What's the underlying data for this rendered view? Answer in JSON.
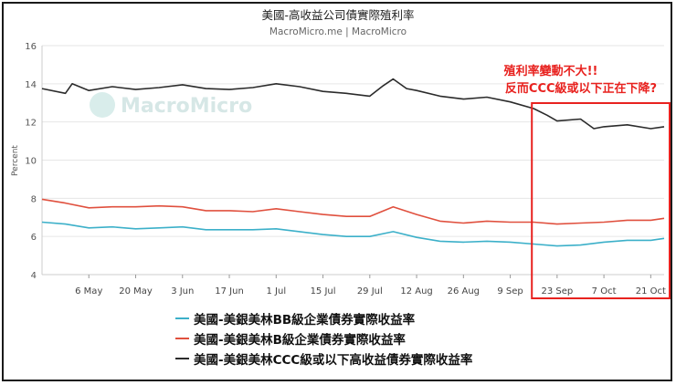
{
  "chart_data": {
    "type": "line",
    "title": "美國-高收益公司債實際殖利率",
    "subtitle": "MacroMicro.me | MacroMicro",
    "ylabel": "Percent",
    "ylim": [
      4,
      16
    ],
    "yticks": [
      4,
      6,
      8,
      10,
      12,
      14,
      16
    ],
    "x_range": [
      "2024-04-22",
      "2024-10-25"
    ],
    "xticks": [
      {
        "date": "2024-05-06",
        "label": "6 May"
      },
      {
        "date": "2024-05-20",
        "label": "20 May"
      },
      {
        "date": "2024-06-03",
        "label": "3 Jun"
      },
      {
        "date": "2024-06-17",
        "label": "17 Jun"
      },
      {
        "date": "2024-07-01",
        "label": "1 Jul"
      },
      {
        "date": "2024-07-15",
        "label": "15 Jul"
      },
      {
        "date": "2024-07-29",
        "label": "29 Jul"
      },
      {
        "date": "2024-08-12",
        "label": "12 Aug"
      },
      {
        "date": "2024-08-26",
        "label": "26 Aug"
      },
      {
        "date": "2024-09-09",
        "label": "9 Sep"
      },
      {
        "date": "2024-09-23",
        "label": "23 Sep"
      },
      {
        "date": "2024-10-07",
        "label": "7 Oct"
      },
      {
        "date": "2024-10-21",
        "label": "21 Oct"
      }
    ],
    "grid": true,
    "legend_position": "bottom",
    "series": [
      {
        "name": "美國-美銀美林BB級企業債券實際收益率",
        "color": "#3cb0c9",
        "points": [
          [
            "2024-04-22",
            6.75
          ],
          [
            "2024-04-29",
            6.65
          ],
          [
            "2024-05-06",
            6.45
          ],
          [
            "2024-05-13",
            6.5
          ],
          [
            "2024-05-20",
            6.4
          ],
          [
            "2024-05-27",
            6.45
          ],
          [
            "2024-06-03",
            6.5
          ],
          [
            "2024-06-10",
            6.35
          ],
          [
            "2024-06-17",
            6.35
          ],
          [
            "2024-06-24",
            6.35
          ],
          [
            "2024-07-01",
            6.4
          ],
          [
            "2024-07-08",
            6.25
          ],
          [
            "2024-07-15",
            6.1
          ],
          [
            "2024-07-22",
            6.0
          ],
          [
            "2024-07-29",
            6.0
          ],
          [
            "2024-08-05",
            6.25
          ],
          [
            "2024-08-12",
            5.95
          ],
          [
            "2024-08-19",
            5.75
          ],
          [
            "2024-08-26",
            5.7
          ],
          [
            "2024-09-02",
            5.75
          ],
          [
            "2024-09-09",
            5.7
          ],
          [
            "2024-09-16",
            5.6
          ],
          [
            "2024-09-23",
            5.5
          ],
          [
            "2024-09-30",
            5.55
          ],
          [
            "2024-10-07",
            5.7
          ],
          [
            "2024-10-14",
            5.8
          ],
          [
            "2024-10-21",
            5.8
          ],
          [
            "2024-10-25",
            5.9
          ]
        ]
      },
      {
        "name": "美國-美銀美林B級企業債券實際收益率",
        "color": "#e0503e",
        "points": [
          [
            "2024-04-22",
            7.95
          ],
          [
            "2024-04-29",
            7.75
          ],
          [
            "2024-05-06",
            7.5
          ],
          [
            "2024-05-13",
            7.55
          ],
          [
            "2024-05-20",
            7.55
          ],
          [
            "2024-05-27",
            7.6
          ],
          [
            "2024-06-03",
            7.55
          ],
          [
            "2024-06-10",
            7.35
          ],
          [
            "2024-06-17",
            7.35
          ],
          [
            "2024-06-24",
            7.3
          ],
          [
            "2024-07-01",
            7.45
          ],
          [
            "2024-07-08",
            7.3
          ],
          [
            "2024-07-15",
            7.15
          ],
          [
            "2024-07-22",
            7.05
          ],
          [
            "2024-07-29",
            7.05
          ],
          [
            "2024-08-05",
            7.55
          ],
          [
            "2024-08-12",
            7.15
          ],
          [
            "2024-08-19",
            6.8
          ],
          [
            "2024-08-26",
            6.7
          ],
          [
            "2024-09-02",
            6.8
          ],
          [
            "2024-09-09",
            6.75
          ],
          [
            "2024-09-16",
            6.75
          ],
          [
            "2024-09-23",
            6.65
          ],
          [
            "2024-09-30",
            6.7
          ],
          [
            "2024-10-07",
            6.75
          ],
          [
            "2024-10-14",
            6.85
          ],
          [
            "2024-10-21",
            6.85
          ],
          [
            "2024-10-25",
            6.95
          ]
        ]
      },
      {
        "name": "美國-美銀美林CCC級或以下高收益債券實際收益率",
        "color": "#2b2b2b",
        "points": [
          [
            "2024-04-22",
            13.75
          ],
          [
            "2024-04-29",
            13.5
          ],
          [
            "2024-05-01",
            14.0
          ],
          [
            "2024-05-06",
            13.65
          ],
          [
            "2024-05-13",
            13.85
          ],
          [
            "2024-05-20",
            13.7
          ],
          [
            "2024-05-27",
            13.8
          ],
          [
            "2024-06-03",
            13.95
          ],
          [
            "2024-06-10",
            13.75
          ],
          [
            "2024-06-17",
            13.7
          ],
          [
            "2024-06-24",
            13.8
          ],
          [
            "2024-07-01",
            14.0
          ],
          [
            "2024-07-08",
            13.85
          ],
          [
            "2024-07-15",
            13.6
          ],
          [
            "2024-07-22",
            13.5
          ],
          [
            "2024-07-29",
            13.35
          ],
          [
            "2024-08-02",
            13.9
          ],
          [
            "2024-08-05",
            14.25
          ],
          [
            "2024-08-09",
            13.75
          ],
          [
            "2024-08-12",
            13.65
          ],
          [
            "2024-08-19",
            13.35
          ],
          [
            "2024-08-26",
            13.2
          ],
          [
            "2024-09-02",
            13.3
          ],
          [
            "2024-09-09",
            13.05
          ],
          [
            "2024-09-16",
            12.7
          ],
          [
            "2024-09-20",
            12.35
          ],
          [
            "2024-09-23",
            12.05
          ],
          [
            "2024-09-30",
            12.15
          ],
          [
            "2024-10-04",
            11.65
          ],
          [
            "2024-10-07",
            11.75
          ],
          [
            "2024-10-14",
            11.85
          ],
          [
            "2024-10-21",
            11.65
          ],
          [
            "2024-10-25",
            11.75
          ]
        ]
      }
    ],
    "annotation": {
      "lines": [
        "殖利率變動不大!!",
        "反而CCC級或以下正在下降?"
      ],
      "color": "#e8221f",
      "highlight_from": "2024-09-16",
      "highlight_to": "2024-10-25"
    },
    "watermark": "MacroMicro"
  }
}
